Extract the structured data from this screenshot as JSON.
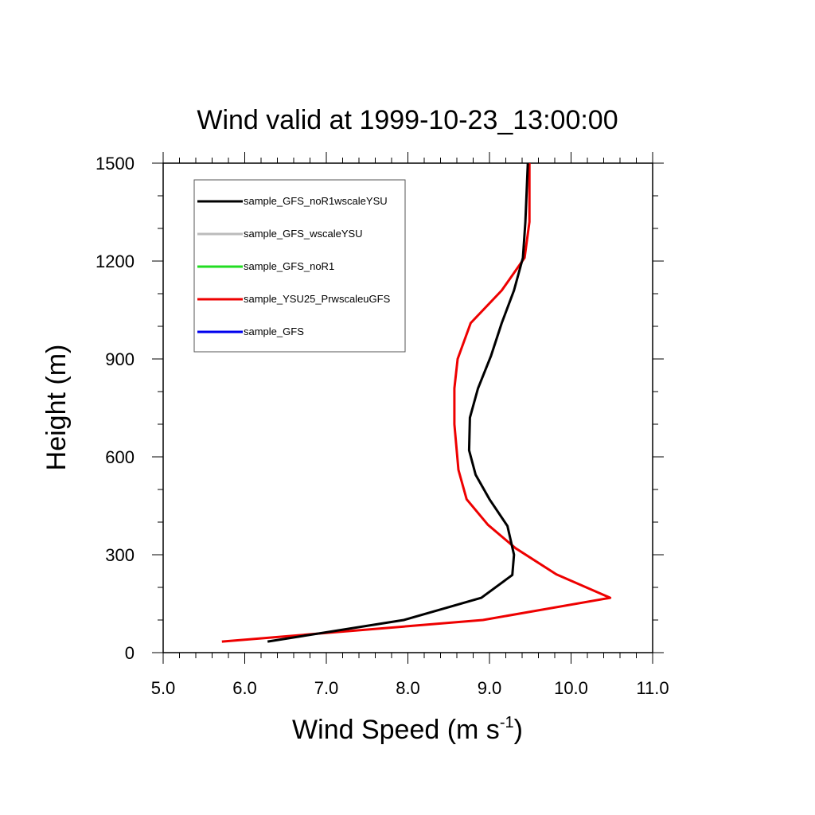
{
  "chart_data": {
    "type": "line",
    "title": "Wind valid at 1999-10-23_13:00:00",
    "xlabel": {
      "main": "Wind Speed (m s",
      "sup": "-1",
      "end": ")"
    },
    "ylabel": "Height (m)",
    "xlim": [
      5.0,
      11.0
    ],
    "ylim": [
      0,
      1500
    ],
    "xticks": [
      5.0,
      6.0,
      7.0,
      8.0,
      9.0,
      10.0,
      11.0
    ],
    "xtick_labels": [
      "5.0",
      "6.0",
      "7.0",
      "8.0",
      "9.0",
      "10.0",
      "11.0"
    ],
    "yticks": [
      0,
      300,
      600,
      900,
      1200,
      1500
    ],
    "ytick_labels": [
      "0",
      "300",
      "600",
      "900",
      "1200",
      "1500"
    ],
    "grid": false,
    "legend_position": "top-left",
    "series": [
      {
        "name": "sample_GFS_noR1wscaleYSU",
        "color": "#000000",
        "points": [
          [
            6.28,
            34
          ],
          [
            7.95,
            100
          ],
          [
            8.9,
            168
          ],
          [
            9.28,
            238
          ],
          [
            9.3,
            300
          ],
          [
            9.22,
            388
          ],
          [
            9.0,
            470
          ],
          [
            8.83,
            545
          ],
          [
            8.75,
            620
          ],
          [
            8.76,
            720
          ],
          [
            8.86,
            810
          ],
          [
            9.02,
            910
          ],
          [
            9.15,
            1010
          ],
          [
            9.3,
            1110
          ],
          [
            9.41,
            1210
          ],
          [
            9.44,
            1320
          ],
          [
            9.47,
            1500
          ]
        ]
      },
      {
        "name": "sample_GFS_wscaleYSU",
        "color": "#bbbbbb",
        "points": []
      },
      {
        "name": "sample_GFS_noR1",
        "color": "#22dd22",
        "points": []
      },
      {
        "name": "sample_YSU25_PrwscaleuGFS",
        "color": "#ee0000",
        "points": [
          [
            5.72,
            34
          ],
          [
            8.92,
            100
          ],
          [
            10.48,
            168
          ],
          [
            9.82,
            240
          ],
          [
            9.32,
            320
          ],
          [
            8.98,
            392
          ],
          [
            8.72,
            470
          ],
          [
            8.62,
            560
          ],
          [
            8.57,
            700
          ],
          [
            8.57,
            810
          ],
          [
            8.61,
            900
          ],
          [
            8.77,
            1010
          ],
          [
            9.15,
            1110
          ],
          [
            9.43,
            1210
          ],
          [
            9.49,
            1320
          ],
          [
            9.49,
            1500
          ]
        ]
      },
      {
        "name": "sample_GFS",
        "color": "#0000ee",
        "points": []
      }
    ]
  }
}
